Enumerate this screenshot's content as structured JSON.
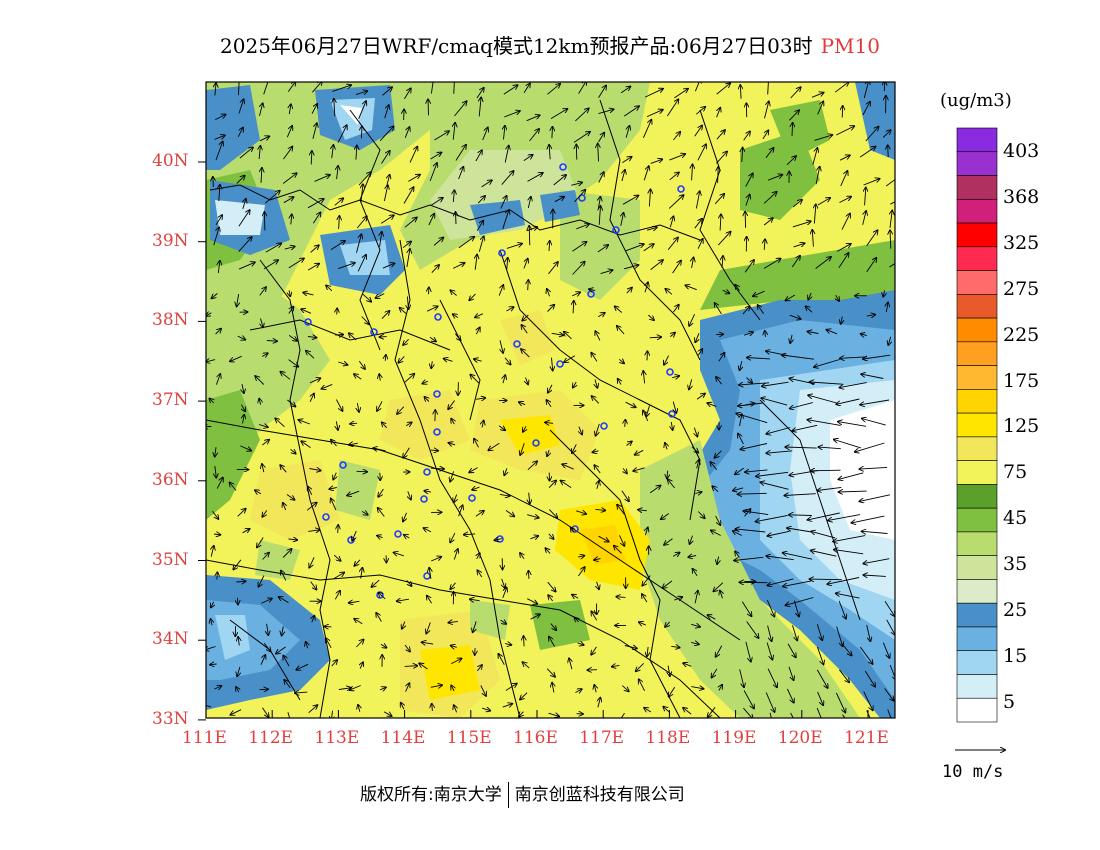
{
  "title": {
    "main": "2025年06月27日WRF/cmaq模式12km预报产品:06月27日03时",
    "pollutant": "PM10"
  },
  "legend": {
    "unit": "(ug/m3)",
    "labels": [
      "403",
      "368",
      "325",
      "275",
      "225",
      "175",
      "125",
      "75",
      "45",
      "35",
      "25",
      "15",
      "5"
    ],
    "colors": [
      "#8a2be2",
      "#9b30d0",
      "#b03060",
      "#d0207a",
      "#ff0000",
      "#ff2a50",
      "#ff6a6a",
      "#e85a2a",
      "#ff8c00",
      "#ffa020",
      "#ffb830",
      "#ffd400",
      "#ffe600",
      "#f2e65a",
      "#f2f25a",
      "#5aa02a",
      "#80c040",
      "#b8dc6e",
      "#cde49a",
      "#dcebc8",
      "#4a90c8",
      "#6ab0e0",
      "#a0d6f2",
      "#d4eef8",
      "#ffffff"
    ]
  },
  "wind_reference": "10 m/s",
  "axes": {
    "lon_labels": [
      "111E",
      "112E",
      "113E",
      "114E",
      "115E",
      "116E",
      "117E",
      "118E",
      "119E",
      "120E",
      "121E"
    ],
    "lat_labels": [
      "40N",
      "39N",
      "38N",
      "37N",
      "36N",
      "35N",
      "34N",
      "33N"
    ]
  },
  "copyright": {
    "owner_label": "版权所有:南京大学",
    "company": "南京创蓝科技有限公司"
  }
}
